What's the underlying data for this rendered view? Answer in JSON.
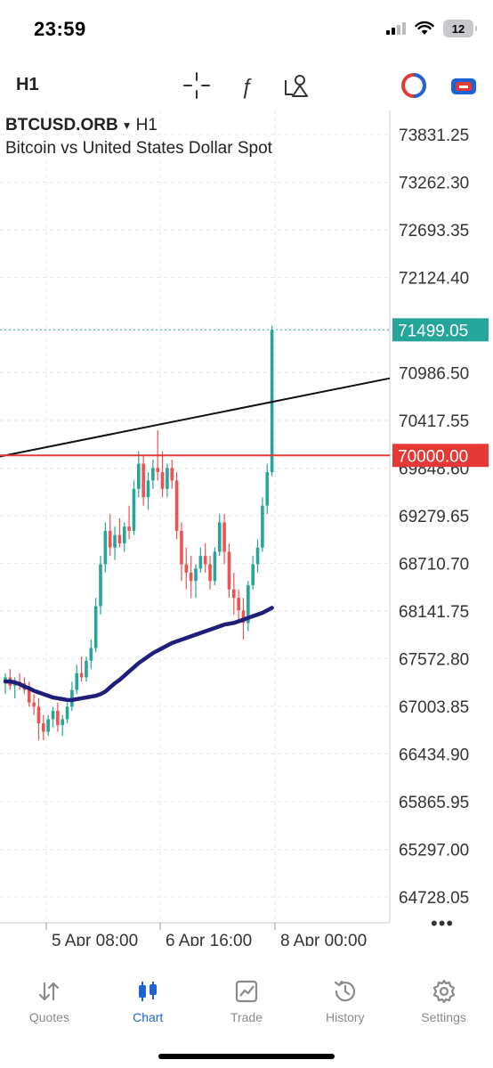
{
  "status": {
    "time": "23:59",
    "battery": "12"
  },
  "toolbar": {
    "timeframe": "H1"
  },
  "chart": {
    "symbol": "BTCUSD.ORB",
    "timeframe": "H1",
    "description": "Bitcoin vs United States Dollar Spot",
    "price_labels": [
      "73831.25",
      "73262.30",
      "72693.35",
      "72124.40",
      "70986.50",
      "70417.55",
      "69848.60",
      "69279.65",
      "68710.70",
      "68141.75",
      "67572.80",
      "67003.85",
      "66434.90",
      "65865.95",
      "65297.00",
      "64728.05"
    ],
    "current_price": "71499.05",
    "hline_price": "70000.00",
    "time_labels": [
      "5 Apr 08:00",
      "6 Apr 16:00",
      "8 Apr 00:00"
    ],
    "colors": {
      "bull": "#26a69a",
      "bear": "#ef5350",
      "ma": "#1f1f7a",
      "hline": "#e53935",
      "trendline": "#111111"
    }
  },
  "chart_data": {
    "type": "candlestick",
    "symbol": "BTCUSD.ORB",
    "timeframe": "H1",
    "ylim": [
      64500,
      74000
    ],
    "y_ticks": [
      73831.25,
      73262.3,
      72693.35,
      72124.4,
      70986.5,
      70417.55,
      69848.6,
      69279.65,
      68710.7,
      68141.75,
      67572.8,
      67003.85,
      66434.9,
      65865.95,
      65297.0,
      64728.05
    ],
    "current_price": 71499.05,
    "horizontal_line": 70000.0,
    "x_labels": [
      "5 Apr 08:00",
      "6 Apr 16:00",
      "8 Apr 00:00"
    ],
    "candles": [
      [
        67300,
        67400,
        67150,
        67350
      ],
      [
        67350,
        67450,
        67200,
        67250
      ],
      [
        67250,
        67350,
        67100,
        67300
      ],
      [
        67300,
        67400,
        67200,
        67280
      ],
      [
        67280,
        67350,
        67150,
        67200
      ],
      [
        67200,
        67300,
        67000,
        67050
      ],
      [
        67050,
        67150,
        66900,
        67000
      ],
      [
        67000,
        67100,
        66600,
        66800
      ],
      [
        66800,
        66900,
        66600,
        66700
      ],
      [
        66700,
        66900,
        66650,
        66850
      ],
      [
        66850,
        67000,
        66750,
        66950
      ],
      [
        66950,
        67050,
        66700,
        66780
      ],
      [
        66780,
        66900,
        66650,
        66850
      ],
      [
        66850,
        67050,
        66800,
        67000
      ],
      [
        67000,
        67300,
        66950,
        67200
      ],
      [
        67200,
        67500,
        67150,
        67400
      ],
      [
        67400,
        67600,
        67300,
        67350
      ],
      [
        67350,
        67600,
        67300,
        67550
      ],
      [
        67550,
        67800,
        67450,
        67700
      ],
      [
        67700,
        68300,
        67650,
        68200
      ],
      [
        68200,
        68800,
        68100,
        68700
      ],
      [
        68700,
        69200,
        68600,
        69100
      ],
      [
        69100,
        69300,
        68800,
        68900
      ],
      [
        68900,
        69150,
        68750,
        69050
      ],
      [
        69050,
        69250,
        68900,
        68950
      ],
      [
        68950,
        69200,
        68850,
        69150
      ],
      [
        69150,
        69400,
        69000,
        69100
      ],
      [
        69100,
        69700,
        69050,
        69600
      ],
      [
        69600,
        70050,
        69500,
        69900
      ],
      [
        69900,
        70000,
        69400,
        69500
      ],
      [
        69500,
        69800,
        69350,
        69700
      ],
      [
        69700,
        69950,
        69600,
        69850
      ],
      [
        69850,
        70300,
        69700,
        69800
      ],
      [
        69800,
        70050,
        69500,
        69600
      ],
      [
        69600,
        69900,
        69500,
        69850
      ],
      [
        69850,
        69950,
        69600,
        69700
      ],
      [
        69700,
        69800,
        69000,
        69100
      ],
      [
        69100,
        69200,
        68500,
        68700
      ],
      [
        68700,
        68900,
        68400,
        68600
      ],
      [
        68600,
        68800,
        68300,
        68500
      ],
      [
        68500,
        68700,
        68300,
        68650
      ],
      [
        68650,
        68900,
        68600,
        68800
      ],
      [
        68800,
        68950,
        68600,
        68700
      ],
      [
        68700,
        68800,
        68400,
        68500
      ],
      [
        68500,
        68900,
        68450,
        68850
      ],
      [
        68850,
        69300,
        68800,
        69200
      ],
      [
        69200,
        69300,
        68700,
        68850
      ],
      [
        68850,
        68950,
        68300,
        68400
      ],
      [
        68400,
        68600,
        68100,
        68300
      ],
      [
        68300,
        68400,
        68000,
        68150
      ],
      [
        68150,
        68300,
        67800,
        68000
      ],
      [
        68000,
        68500,
        67900,
        68450
      ],
      [
        68450,
        68800,
        68400,
        68700
      ],
      [
        68700,
        69000,
        68600,
        68900
      ],
      [
        68900,
        69500,
        68850,
        69400
      ],
      [
        69400,
        69900,
        69300,
        69800
      ],
      [
        69800,
        71550,
        69750,
        71499.05
      ]
    ],
    "moving_average": [
      67300,
      67300,
      67290,
      67270,
      67240,
      67220,
      67190,
      67170,
      67150,
      67130,
      67110,
      67100,
      67090,
      67080,
      67080,
      67090,
      67100,
      67110,
      67120,
      67130,
      67150,
      67180,
      67230,
      67280,
      67320,
      67370,
      67420,
      67470,
      67520,
      67560,
      67600,
      67640,
      67670,
      67700,
      67730,
      67760,
      67780,
      67800,
      67820,
      67840,
      67860,
      67880,
      67900,
      67920,
      67940,
      67960,
      67980,
      67990,
      68000,
      68020,
      68040,
      68060,
      68080,
      68100,
      68120,
      68150,
      68180
    ],
    "trendline": {
      "from": {
        "candle": 0,
        "price": 70000
      },
      "to": {
        "candle": 57,
        "price": 70650
      }
    }
  },
  "bottom_nav": [
    {
      "label": "Quotes",
      "icon": "quotes-icon"
    },
    {
      "label": "Chart",
      "icon": "chart-icon"
    },
    {
      "label": "Trade",
      "icon": "trade-icon"
    },
    {
      "label": "History",
      "icon": "history-icon"
    },
    {
      "label": "Settings",
      "icon": "settings-icon"
    }
  ]
}
